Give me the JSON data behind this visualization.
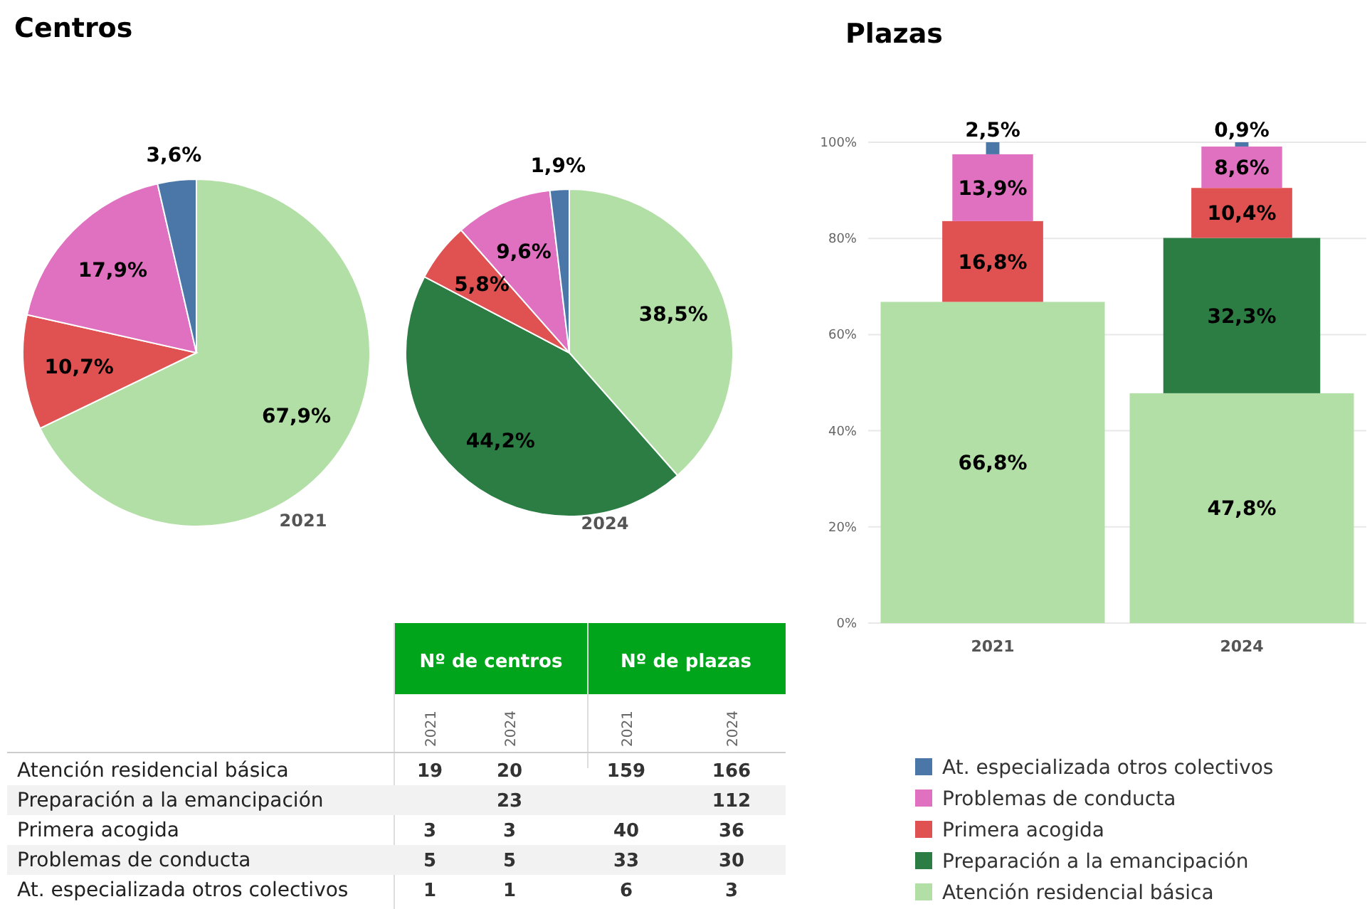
{
  "chart_data": [
    {
      "type": "pie",
      "title": "Centros",
      "xlabel": "2021",
      "categories": [
        null,
        null,
        null,
        null
      ],
      "values": [
        67.9,
        10.7,
        17.9,
        3.6
      ],
      "colors": [
        "#b2dfa5",
        "#e05252",
        "#e070c0",
        "#4a77a8"
      ],
      "value_labels": [
        "67,9%",
        "10,7%",
        "17,9%",
        "3,6%"
      ]
    },
    {
      "type": "pie",
      "xlabel": "2024",
      "categories": [
        null,
        null,
        null,
        null,
        null
      ],
      "values": [
        38.5,
        44.2,
        5.8,
        9.6,
        1.9
      ],
      "colors": [
        "#b2dfa5",
        "#2b7d44",
        "#e05252",
        "#e070c0",
        "#4a77a8"
      ],
      "value_labels": [
        "38,5%",
        "44,2%",
        "5,8%",
        "9,6%",
        "1,9%"
      ]
    },
    {
      "type": "bar",
      "title": "Plazas",
      "stacked": true,
      "categories": [
        "2021",
        "2024"
      ],
      "ylim": [
        0,
        100
      ],
      "yticks": [
        {
          "value": 0,
          "label": "0%"
        },
        {
          "value": 20,
          "label": "20%"
        },
        {
          "value": 40,
          "label": "40%"
        },
        {
          "value": 60,
          "label": "60%"
        },
        {
          "value": 80,
          "label": "80%"
        },
        {
          "value": 100,
          "label": "100%"
        }
      ],
      "grid": "y",
      "legend": "bottom",
      "series": [
        {
          "name": "Atención residencial básica",
          "color": "#b2dfa5",
          "values": [
            66.8,
            47.8
          ],
          "value_labels": [
            "66,8%",
            "47,8%"
          ]
        },
        {
          "name": "Preparación a la emancipación",
          "color": "#2b7d44",
          "values": [
            null,
            32.3
          ],
          "value_labels": [
            null,
            "32,3%"
          ]
        },
        {
          "name": "Primera acogida",
          "color": "#e05252",
          "values": [
            16.8,
            10.4
          ],
          "value_labels": [
            "16,8%",
            "10,4%"
          ]
        },
        {
          "name": "Problemas de conducta",
          "color": "#e070c0",
          "values": [
            13.9,
            8.6
          ],
          "value_labels": [
            "13,9%",
            "8,6%"
          ]
        },
        {
          "name": "At. especializada otros colectivos",
          "color": "#4a77a8",
          "values": [
            2.5,
            0.9
          ],
          "value_labels": [
            "2,5%",
            "0,9%"
          ]
        }
      ]
    },
    {
      "type": "heatmap",
      "annotations": [
        "Nº de centros",
        "Nº de plazas"
      ],
      "categories": [
        "2021",
        "2024",
        "2021",
        "2024"
      ],
      "y_categories": [
        "Atención residencial básica",
        "Preparación a la emancipación",
        "Primera acogida",
        "Problemas de conducta",
        "At. especializada otros colectivos"
      ],
      "data_labels": true,
      "cells": [
        [
          19,
          20,
          159,
          166
        ],
        [
          null,
          23,
          null,
          112
        ],
        [
          3,
          3,
          40,
          36
        ],
        [
          5,
          5,
          33,
          30
        ],
        [
          1,
          1,
          6,
          3
        ]
      ]
    }
  ]
}
